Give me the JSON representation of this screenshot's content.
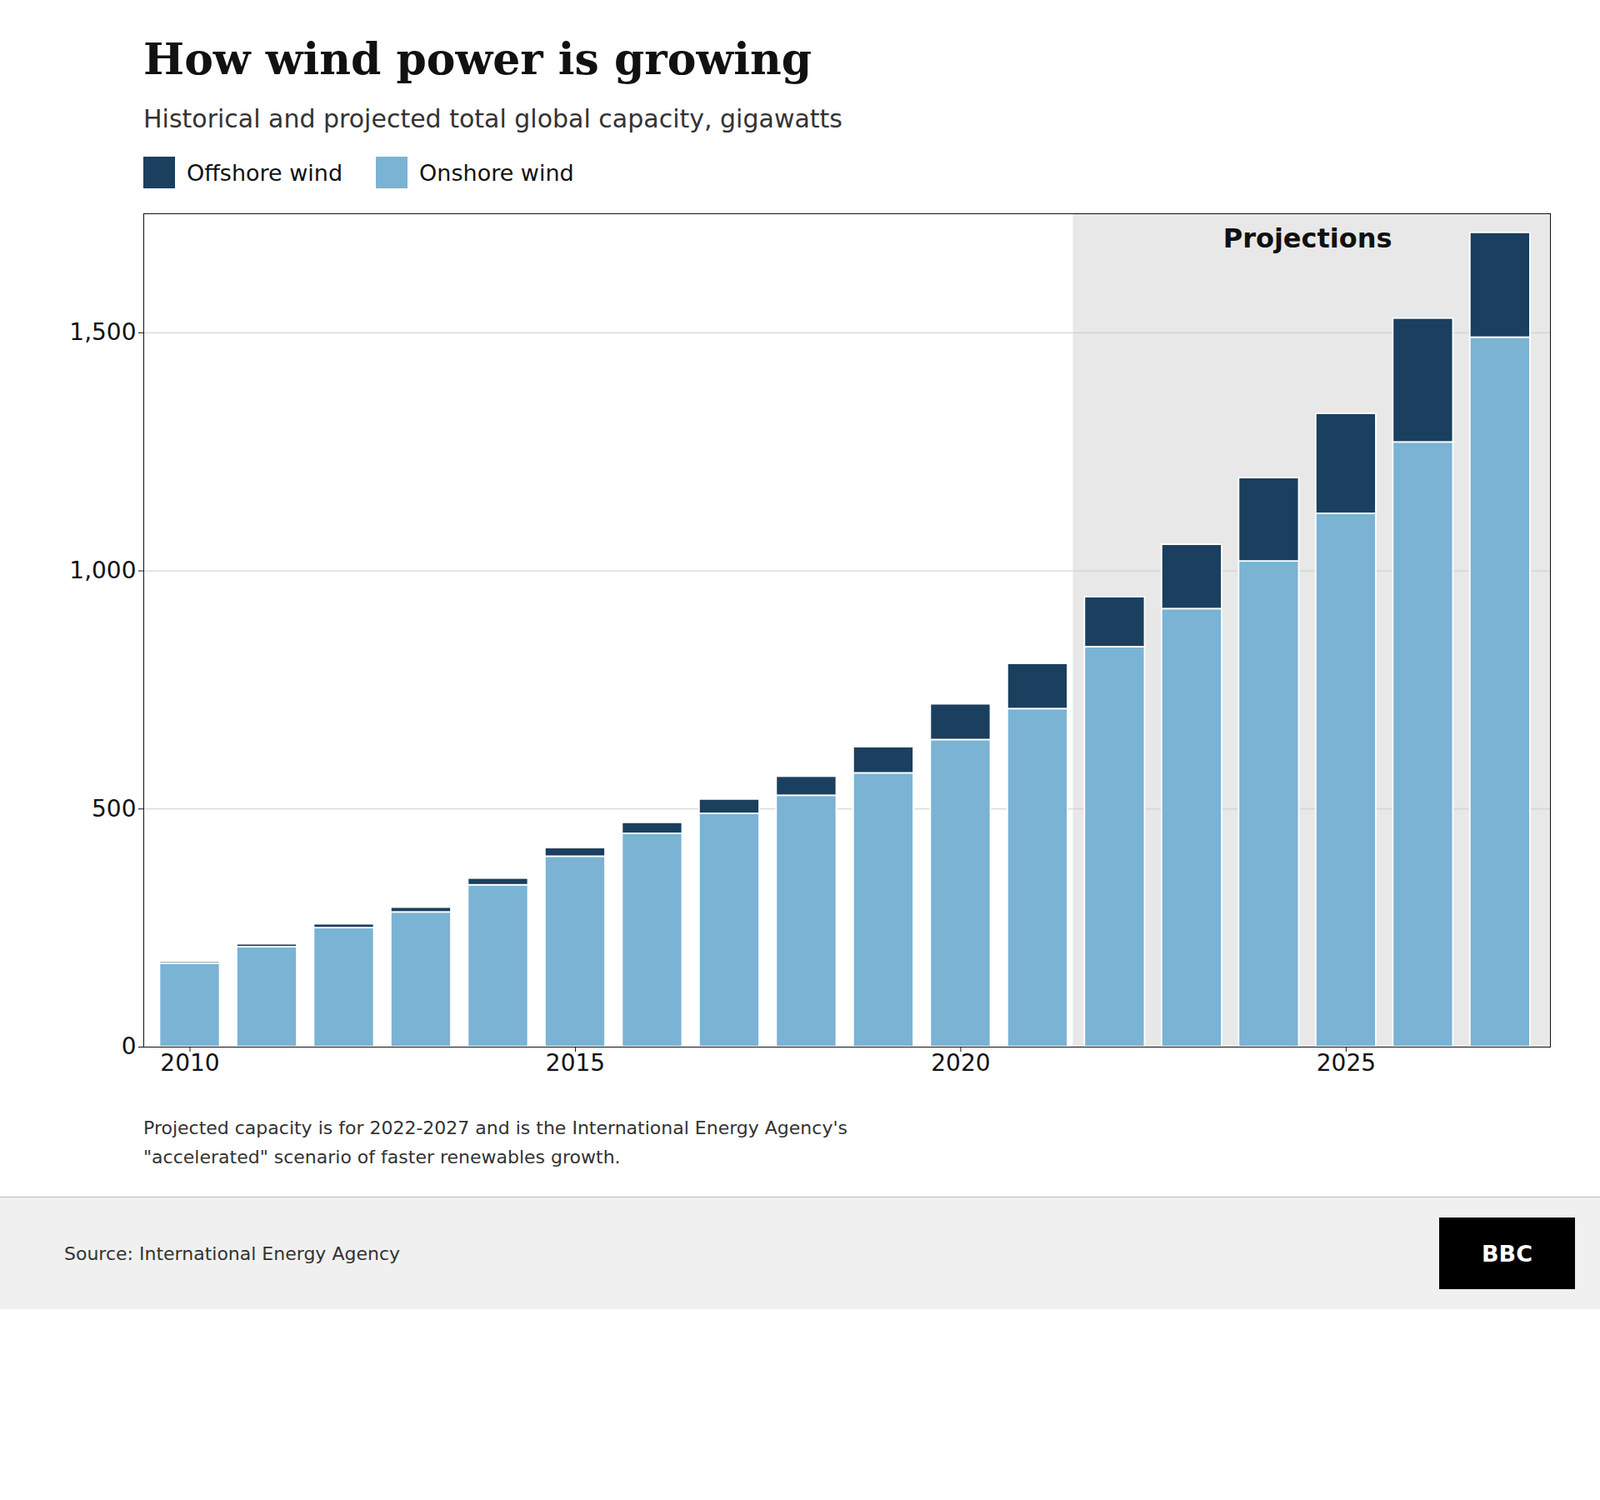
{
  "chart_data": {
    "type": "bar",
    "stacked": true,
    "title": "How wind power is growing",
    "subtitle": "Historical and projected total global capacity, gigawatts",
    "x": [
      2010,
      2011,
      2012,
      2013,
      2014,
      2015,
      2016,
      2017,
      2018,
      2019,
      2020,
      2021,
      2022,
      2023,
      2024,
      2025,
      2026,
      2027
    ],
    "series": [
      {
        "name": "Onshore wind",
        "color": "#7ab3d4",
        "values": [
          175,
          210,
          250,
          283,
          340,
          400,
          448,
          490,
          528,
          575,
          645,
          710,
          840,
          920,
          1020,
          1120,
          1270,
          1490
        ]
      },
      {
        "name": "Offshore wind",
        "color": "#1b3f5e",
        "values": [
          4,
          6,
          8,
          10,
          14,
          18,
          23,
          30,
          40,
          55,
          75,
          95,
          105,
          135,
          175,
          210,
          260,
          220
        ]
      }
    ],
    "xlim": [
      2009.4,
      2027.65
    ],
    "xticks": [
      2010,
      2015,
      2020,
      2025
    ],
    "ylim": [
      0,
      1750
    ],
    "yticks": [
      0,
      500,
      {
        "value": 1000,
        "label": "1,000"
      },
      {
        "value": 1500,
        "label": "1,500"
      }
    ],
    "grid": true,
    "legend": "top-left",
    "annotations": [
      {
        "text": "Projections",
        "x_start": 2022,
        "x_end": 2027,
        "color": "#e8e8e8"
      }
    ],
    "footnote": [
      "Projected capacity is for 2022-2027 and is the International Energy Agency's",
      "\"accelerated\" scenario of faster renewables growth."
    ],
    "source": "Source: International Energy Agency",
    "logo": "BBC"
  }
}
